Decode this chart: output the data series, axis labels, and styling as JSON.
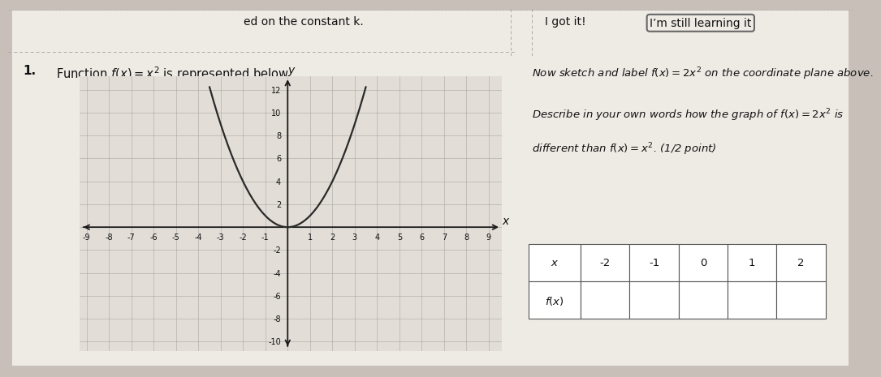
{
  "title_top_left": "ed on the constant k.",
  "title_got_it": "I got it!",
  "title_learning": "I’m still learning it",
  "item_number": "1.",
  "function_label": "Function $f(x) = x^2$ is represented below",
  "sketch_text_line1": "Now sketch and label $f(x) = 2x^2$ on the coordinate plane above.",
  "describe_text_line1": "Describe in your own words how the graph of $f(x) = 2x^2$ is",
  "describe_text_line2": "different than $f(x) = x^2$. (1/2 point)",
  "x_label": "$x$",
  "y_label": "$y$",
  "xmin": -9,
  "xmax": 9,
  "ymin": -10,
  "ymax": 12,
  "x_tick_step": 1,
  "y_tick_step": 2,
  "table_x_values": [
    "-2",
    "-1",
    "0",
    "1",
    "2"
  ],
  "table_row1_label": "$x$",
  "table_row2_label": "$f(x)$",
  "bg_color": "#c8c0b8",
  "paper_color": "#eeebe5",
  "graph_bg": "#e2ddd7",
  "grid_color": "#aaa8a4",
  "axis_color": "#1a1a1a",
  "curve_color": "#2a2a2a",
  "curve_linewidth": 1.6,
  "table_border_color": "#555555",
  "text_color": "#111111",
  "top_bar_border": "#aaaaaa"
}
